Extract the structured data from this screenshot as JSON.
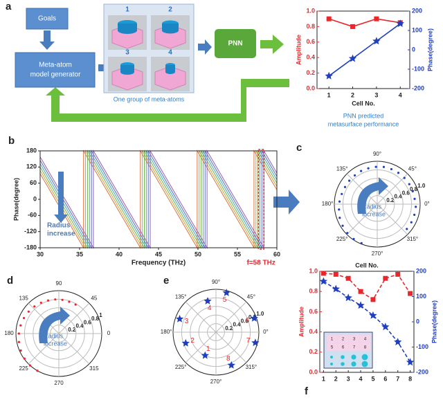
{
  "diagram": {
    "letters": [
      "a",
      "b",
      "c",
      "d",
      "e",
      "f"
    ],
    "goals": "Goals",
    "generator": [
      "Meta-atom",
      "model generator"
    ],
    "pnn": "PNN",
    "atom_labels": [
      "1",
      "2",
      "3",
      "4"
    ],
    "atom_caption": "One group of meta-atoms",
    "chart_caption": [
      "PNN predicted",
      "metasurface performance"
    ]
  },
  "chart_data": [
    {
      "type": "dual-line",
      "x_label": "Cell No.",
      "y_label": "Amplitude",
      "y2_label": "Phase(degree)",
      "x": [
        1,
        2,
        3,
        4
      ],
      "xlim": [
        0.5,
        4.4
      ],
      "xticks": [
        1,
        2,
        3,
        4
      ],
      "ylim": [
        0,
        1
      ],
      "yticks": [
        {
          "value": 0,
          "label": "0.0"
        },
        0.2,
        0.4,
        0.6,
        0.8,
        {
          "value": 1,
          "label": "1.0"
        }
      ],
      "y2lim": [
        -200,
        200
      ],
      "y2ticks": [
        -200,
        -100,
        0,
        100,
        200
      ],
      "series": [
        {
          "color": "#e8262b",
          "marker": "square",
          "values": [
            0.9,
            0.8,
            0.9,
            0.85
          ]
        },
        {
          "color": "#1f3fbf",
          "marker": "star",
          "axis": "y2",
          "values": [
            -135,
            -45,
            45,
            135
          ]
        }
      ]
    },
    {
      "type": "line",
      "x_label": "Frequency (THz)",
      "y_label": "Phase(degree)",
      "xlim": [
        30,
        60
      ],
      "xticks": [
        30,
        35,
        40,
        45,
        50,
        55,
        60
      ],
      "ylim": [
        -180,
        180
      ],
      "yticks": [
        -180,
        -120,
        -60,
        0,
        60,
        120,
        180
      ],
      "annotations": [
        "Radius",
        "increase",
        "f=58 THz"
      ],
      "highlight_x": 58,
      "series": [
        {
          "color": "#e0703a",
          "x": [
            30,
            35.5,
            35.5,
            42.7,
            42.7,
            49.9,
            49.9,
            57.1,
            57.1,
            60
          ],
          "values": [
            95,
            -180,
            180,
            -180,
            180,
            -180,
            180,
            -180,
            180,
            35
          ]
        },
        {
          "color": "#c9a43a",
          "x": [
            30,
            35.75,
            35.75,
            42.95,
            42.95,
            50.15,
            50.15,
            57.35,
            57.35,
            60
          ],
          "values": [
            107.5,
            -180,
            180,
            -180,
            180,
            -180,
            180,
            -180,
            180,
            47.5
          ]
        },
        {
          "color": "#6fb04a",
          "x": [
            30,
            36,
            36,
            43.2,
            43.2,
            50.4,
            50.4,
            57.6,
            57.6,
            60
          ],
          "values": [
            120,
            -180,
            180,
            -180,
            180,
            -180,
            180,
            -180,
            180,
            60
          ]
        },
        {
          "color": "#3fa6b8",
          "x": [
            30,
            36.25,
            36.25,
            43.45,
            43.45,
            50.65,
            50.65,
            57.85,
            57.85,
            60
          ],
          "values": [
            132.5,
            -180,
            180,
            -180,
            180,
            -180,
            180,
            -180,
            180,
            72.5
          ]
        },
        {
          "color": "#4a6fc9",
          "x": [
            30,
            36.5,
            36.5,
            43.7,
            43.7,
            50.9,
            50.9,
            58.1,
            58.1,
            60
          ],
          "values": [
            145,
            -180,
            180,
            -180,
            180,
            -180,
            180,
            -180,
            180,
            85
          ]
        },
        {
          "color": "#9a5ab8",
          "x": [
            30,
            36.75,
            36.75,
            43.95,
            43.95,
            51.15,
            51.15,
            58.35,
            58.35,
            60
          ],
          "values": [
            157.5,
            -180,
            180,
            -180,
            180,
            -180,
            180,
            -180,
            180,
            97.5
          ]
        }
      ]
    },
    {
      "type": "polar",
      "annotations": [
        "Radius",
        "increase"
      ],
      "rlim": [
        0,
        1
      ],
      "rticks": [
        0.2,
        0.4,
        0.6,
        0.8,
        {
          "value": 1,
          "label": "1.0"
        }
      ],
      "angle_ticks": [
        {
          "value": 90,
          "label": "90°"
        },
        {
          "value": 45,
          "label": "45°"
        },
        {
          "value": 0,
          "label": "0°"
        },
        {
          "value": 315,
          "label": "315°"
        },
        {
          "value": 270,
          "label": "270°"
        },
        {
          "value": 225,
          "label": "225°"
        },
        {
          "value": 180,
          "label": "180°"
        },
        {
          "value": 135,
          "label": "135°"
        }
      ],
      "series": [
        {
          "color": "#1f3fbf",
          "marker": "dot",
          "angle": [
            -40,
            -28,
            -16,
            -4,
            8,
            20,
            32,
            44,
            56,
            68,
            80,
            92,
            104,
            116,
            128,
            140,
            152,
            164,
            176,
            188,
            200,
            212,
            224,
            236,
            248
          ],
          "values": [
            0.9,
            0.9,
            0.9,
            0.9,
            0.88,
            0.88,
            0.88,
            0.88,
            0.88,
            0.88,
            0.88,
            0.87,
            0.86,
            0.86,
            0.85,
            0.85,
            0.85,
            0.86,
            0.88,
            0.9,
            0.93,
            0.95,
            0.97,
            0.98,
            0.98
          ]
        }
      ]
    },
    {
      "type": "polar",
      "annotations": [
        "Radius",
        "increase"
      ],
      "rlim": [
        0,
        1
      ],
      "rticks": [
        0.2,
        0.4,
        0.6,
        0.8,
        1
      ],
      "angle_ticks": [
        90,
        45,
        0,
        315,
        270,
        225,
        180,
        135
      ],
      "series": [
        {
          "color": "#e8262b",
          "marker": "dot",
          "angle": [
            60,
            72,
            84,
            96,
            108,
            120,
            132,
            144,
            156,
            168,
            180,
            192,
            204,
            216,
            228,
            240
          ],
          "values": [
            0.78,
            0.78,
            0.79,
            0.8,
            0.81,
            0.83,
            0.85,
            0.87,
            0.89,
            0.91,
            0.93,
            0.95,
            0.97,
            0.99,
            1,
            1
          ]
        }
      ]
    },
    {
      "type": "polar",
      "rlim": [
        0,
        1
      ],
      "rticks": [
        0.2,
        0.4,
        0.6,
        0.8,
        {
          "value": 1,
          "label": "1.0"
        }
      ],
      "angle_ticks": [
        {
          "value": 90,
          "label": "90°"
        },
        {
          "value": 45,
          "label": "45°"
        },
        {
          "value": 0,
          "label": "0°"
        },
        {
          "value": 315,
          "label": "315°"
        },
        {
          "value": 270,
          "label": "270°"
        },
        {
          "value": 225,
          "label": "225°"
        },
        {
          "value": 180,
          "label": "180°"
        },
        {
          "value": 135,
          "label": "135°"
        }
      ],
      "series": [
        {
          "color": "#1f3fbf",
          "marker": "star",
          "label_color": "#e8262b",
          "angle": [
            245,
            200,
            160,
            105,
            75,
            20,
            -15,
            -65
          ],
          "values": [
            0.6,
            0.75,
            0.9,
            0.75,
            0.95,
            0.95,
            0.95,
            0.85
          ],
          "point_labels": [
            "1",
            "2",
            "3",
            "4",
            "5",
            "6",
            "7",
            "8"
          ]
        }
      ]
    },
    {
      "type": "dual-line",
      "x_label": "Cell No.",
      "y_label": "Amplitude",
      "y2_label": "Phase(degree)",
      "x": [
        1,
        2,
        3,
        4,
        5,
        6,
        7,
        8
      ],
      "xlim": [
        0.7,
        8.3
      ],
      "xticks": [
        1,
        2,
        3,
        4,
        5,
        6,
        7,
        8
      ],
      "ylim": [
        0,
        1
      ],
      "yticks": [
        {
          "value": 0,
          "label": "0.0"
        },
        0.2,
        0.4,
        0.6,
        0.8,
        {
          "value": 1,
          "label": "1.0"
        }
      ],
      "y2lim": [
        -200,
        200
      ],
      "y2ticks": [
        -200,
        -100,
        0,
        100,
        200
      ],
      "inset_labels": [
        "1",
        "2",
        "3",
        "4",
        "5",
        "6",
        "7",
        "8"
      ],
      "series": [
        {
          "color": "#e8262b",
          "marker": "square",
          "values": [
            0.98,
            0.97,
            0.93,
            0.8,
            0.72,
            0.93,
            0.97,
            0.78
          ]
        },
        {
          "color": "#1f3fbf",
          "marker": "star",
          "axis": "y2",
          "values": [
            160,
            130,
            95,
            65,
            25,
            -20,
            -80,
            -160
          ]
        }
      ]
    }
  ]
}
